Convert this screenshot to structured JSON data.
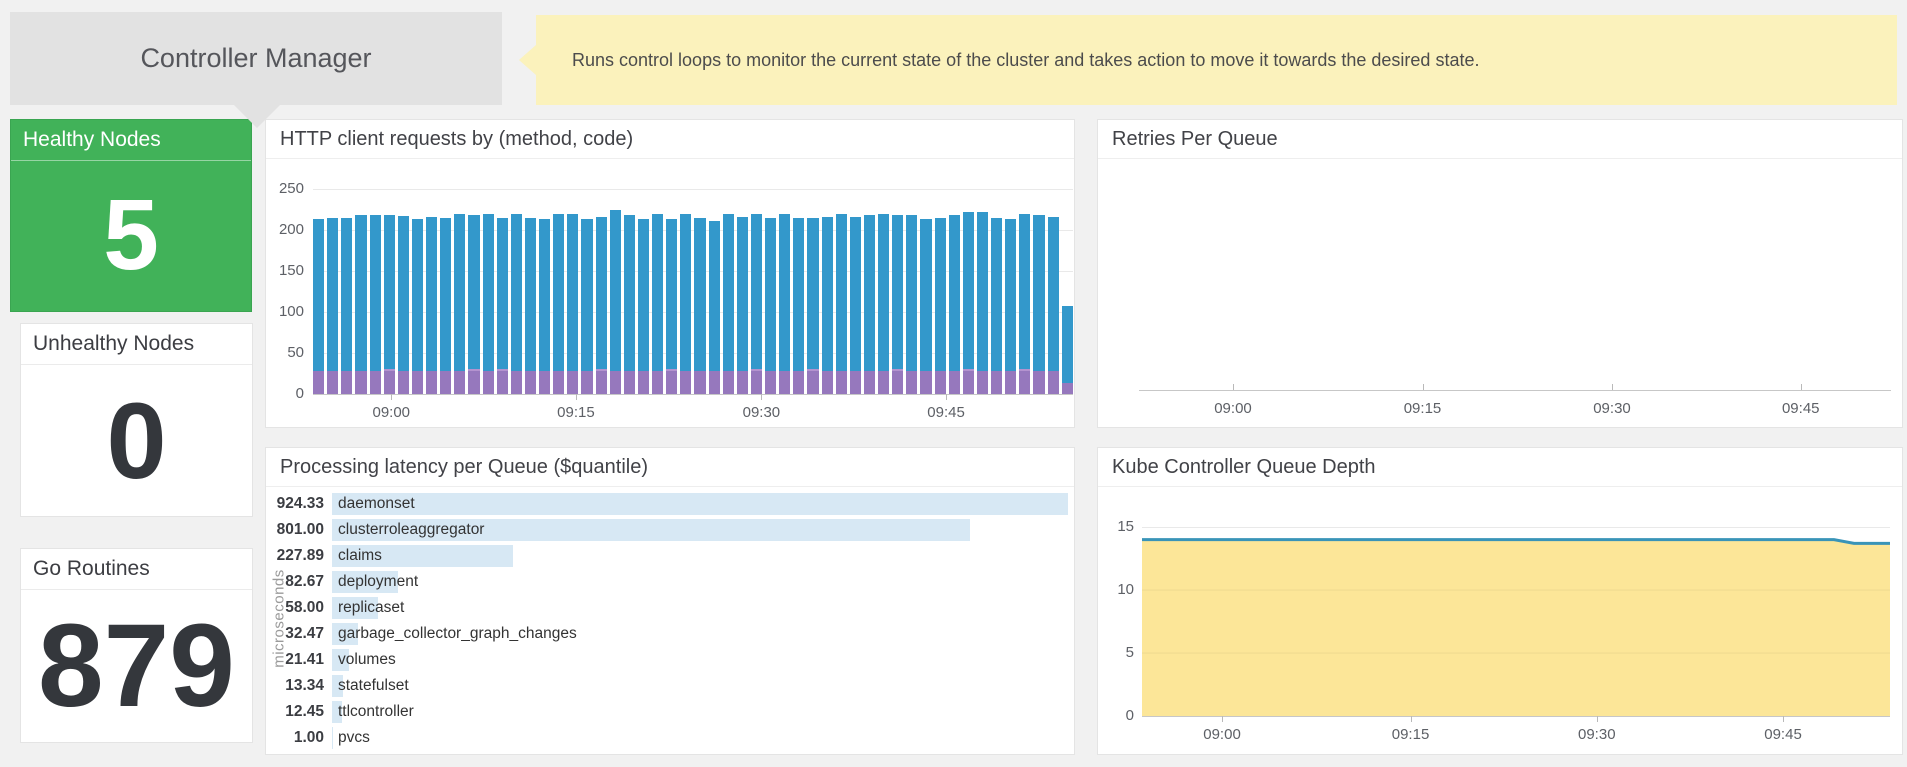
{
  "header": {
    "title": "Controller Manager",
    "note": "Runs control loops to monitor the current state of the cluster and takes action to move it towards the desired state."
  },
  "stats": [
    {
      "label": "Healthy Nodes",
      "value": "5",
      "variant": "green"
    },
    {
      "label": "Unhealthy Nodes",
      "value": "0",
      "variant": "white"
    },
    {
      "label": "Go Routines",
      "value": "879",
      "variant": "white"
    }
  ],
  "colors": {
    "healthy_green": "#41b259",
    "bar_blue": "#3398cb",
    "bar_purple": "#9678bd",
    "bar_purple_light": "#b493cf",
    "latency_bar_blue": "#d7e8f4",
    "depth_area_yellow": "#fce48f",
    "depth_line_blue": "#3994b8",
    "note_yellow": "#fbf2bc",
    "title_gray": "#e2e2e2"
  },
  "chart_data": [
    {
      "id": "http_client_requests",
      "type": "bar",
      "stacked": true,
      "title": "HTTP client requests by (method, code)",
      "x_ticks": [
        "09:00",
        "09:15",
        "09:30",
        "09:45"
      ],
      "y_ticks": [
        0,
        50,
        100,
        150,
        200,
        250
      ],
      "ylim": [
        0,
        250
      ],
      "grid": true,
      "legend_position": "none",
      "series": [
        {
          "name": "purple-bottom",
          "color": "#9678bd"
        },
        {
          "name": "purple-light-mid",
          "color": "#b493cf"
        },
        {
          "name": "blue-top",
          "color": "#3398cb"
        }
      ],
      "bars": [
        {
          "b": 28,
          "m": 0,
          "t": 214
        },
        {
          "b": 28,
          "m": 0,
          "t": 215
        },
        {
          "b": 28,
          "m": 0,
          "t": 215
        },
        {
          "b": 28,
          "m": 0,
          "t": 218
        },
        {
          "b": 28,
          "m": 0,
          "t": 218
        },
        {
          "b": 28,
          "m": 3,
          "t": 218
        },
        {
          "b": 28,
          "m": 0,
          "t": 217
        },
        {
          "b": 28,
          "m": 0,
          "t": 214
        },
        {
          "b": 28,
          "m": 0,
          "t": 216
        },
        {
          "b": 28,
          "m": 0,
          "t": 215
        },
        {
          "b": 28,
          "m": 0,
          "t": 220
        },
        {
          "b": 28,
          "m": 3,
          "t": 218
        },
        {
          "b": 28,
          "m": 0,
          "t": 220
        },
        {
          "b": 28,
          "m": 3,
          "t": 215
        },
        {
          "b": 28,
          "m": 0,
          "t": 220
        },
        {
          "b": 28,
          "m": 0,
          "t": 215
        },
        {
          "b": 28,
          "m": 0,
          "t": 213
        },
        {
          "b": 28,
          "m": 0,
          "t": 219
        },
        {
          "b": 28,
          "m": 0,
          "t": 219
        },
        {
          "b": 28,
          "m": 0,
          "t": 214
        },
        {
          "b": 28,
          "m": 3,
          "t": 216
        },
        {
          "b": 28,
          "m": 0,
          "t": 224
        },
        {
          "b": 28,
          "m": 0,
          "t": 218
        },
        {
          "b": 28,
          "m": 0,
          "t": 214
        },
        {
          "b": 28,
          "m": 0,
          "t": 220
        },
        {
          "b": 28,
          "m": 3,
          "t": 213
        },
        {
          "b": 28,
          "m": 0,
          "t": 219
        },
        {
          "b": 28,
          "m": 0,
          "t": 215
        },
        {
          "b": 28,
          "m": 0,
          "t": 211
        },
        {
          "b": 28,
          "m": 0,
          "t": 219
        },
        {
          "b": 28,
          "m": 0,
          "t": 216
        },
        {
          "b": 28,
          "m": 3,
          "t": 220
        },
        {
          "b": 28,
          "m": 0,
          "t": 215
        },
        {
          "b": 28,
          "m": 0,
          "t": 219
        },
        {
          "b": 28,
          "m": 0,
          "t": 215
        },
        {
          "b": 28,
          "m": 3,
          "t": 215
        },
        {
          "b": 28,
          "m": 0,
          "t": 216
        },
        {
          "b": 28,
          "m": 0,
          "t": 219
        },
        {
          "b": 28,
          "m": 0,
          "t": 216
        },
        {
          "b": 28,
          "m": 0,
          "t": 218
        },
        {
          "b": 28,
          "m": 0,
          "t": 219
        },
        {
          "b": 28,
          "m": 3,
          "t": 218
        },
        {
          "b": 28,
          "m": 0,
          "t": 218
        },
        {
          "b": 28,
          "m": 0,
          "t": 214
        },
        {
          "b": 28,
          "m": 0,
          "t": 215
        },
        {
          "b": 28,
          "m": 0,
          "t": 218
        },
        {
          "b": 28,
          "m": 3,
          "t": 222
        },
        {
          "b": 28,
          "m": 0,
          "t": 222
        },
        {
          "b": 28,
          "m": 0,
          "t": 215
        },
        {
          "b": 28,
          "m": 0,
          "t": 214
        },
        {
          "b": 28,
          "m": 3,
          "t": 220
        },
        {
          "b": 28,
          "m": 0,
          "t": 218
        },
        {
          "b": 28,
          "m": 0,
          "t": 216
        },
        {
          "b": 14,
          "m": 0,
          "t": 107
        }
      ]
    },
    {
      "id": "retries_per_queue",
      "type": "line",
      "title": "Retries Per Queue",
      "x_ticks": [
        "09:00",
        "09:15",
        "09:30",
        "09:45"
      ],
      "series": [],
      "note": "empty plot - no data shown"
    },
    {
      "id": "processing_latency_per_queue",
      "type": "bar-horizontal",
      "title": "Processing latency per Queue ($quantile)",
      "ylabel": "microseconds",
      "xmax": 924.33,
      "rows": [
        {
          "value": 924.33,
          "display": "924.33",
          "label": "daemonset"
        },
        {
          "value": 801.0,
          "display": "801.00",
          "label": "clusterroleaggregator"
        },
        {
          "value": 227.89,
          "display": "227.89",
          "label": "claims"
        },
        {
          "value": 82.67,
          "display": "82.67",
          "label": "deployment"
        },
        {
          "value": 58.0,
          "display": "58.00",
          "label": "replicaset"
        },
        {
          "value": 32.47,
          "display": "32.47",
          "label": "garbage_collector_graph_changes"
        },
        {
          "value": 21.41,
          "display": "21.41",
          "label": "volumes"
        },
        {
          "value": 13.34,
          "display": "13.34",
          "label": "statefulset"
        },
        {
          "value": 12.45,
          "display": "12.45",
          "label": "ttlcontroller"
        },
        {
          "value": 1.0,
          "display": "1.00",
          "label": "pvcs"
        }
      ]
    },
    {
      "id": "kube_controller_queue_depth",
      "type": "area",
      "title": "Kube Controller Queue Depth",
      "x_ticks": [
        "09:00",
        "09:15",
        "09:30",
        "09:45"
      ],
      "y_ticks": [
        0,
        5,
        10,
        15
      ],
      "ylim": [
        0,
        15
      ],
      "grid": true,
      "series": [
        {
          "name": "queue depth",
          "constant_value": 14,
          "end_dip_value": 13.7
        }
      ]
    }
  ]
}
